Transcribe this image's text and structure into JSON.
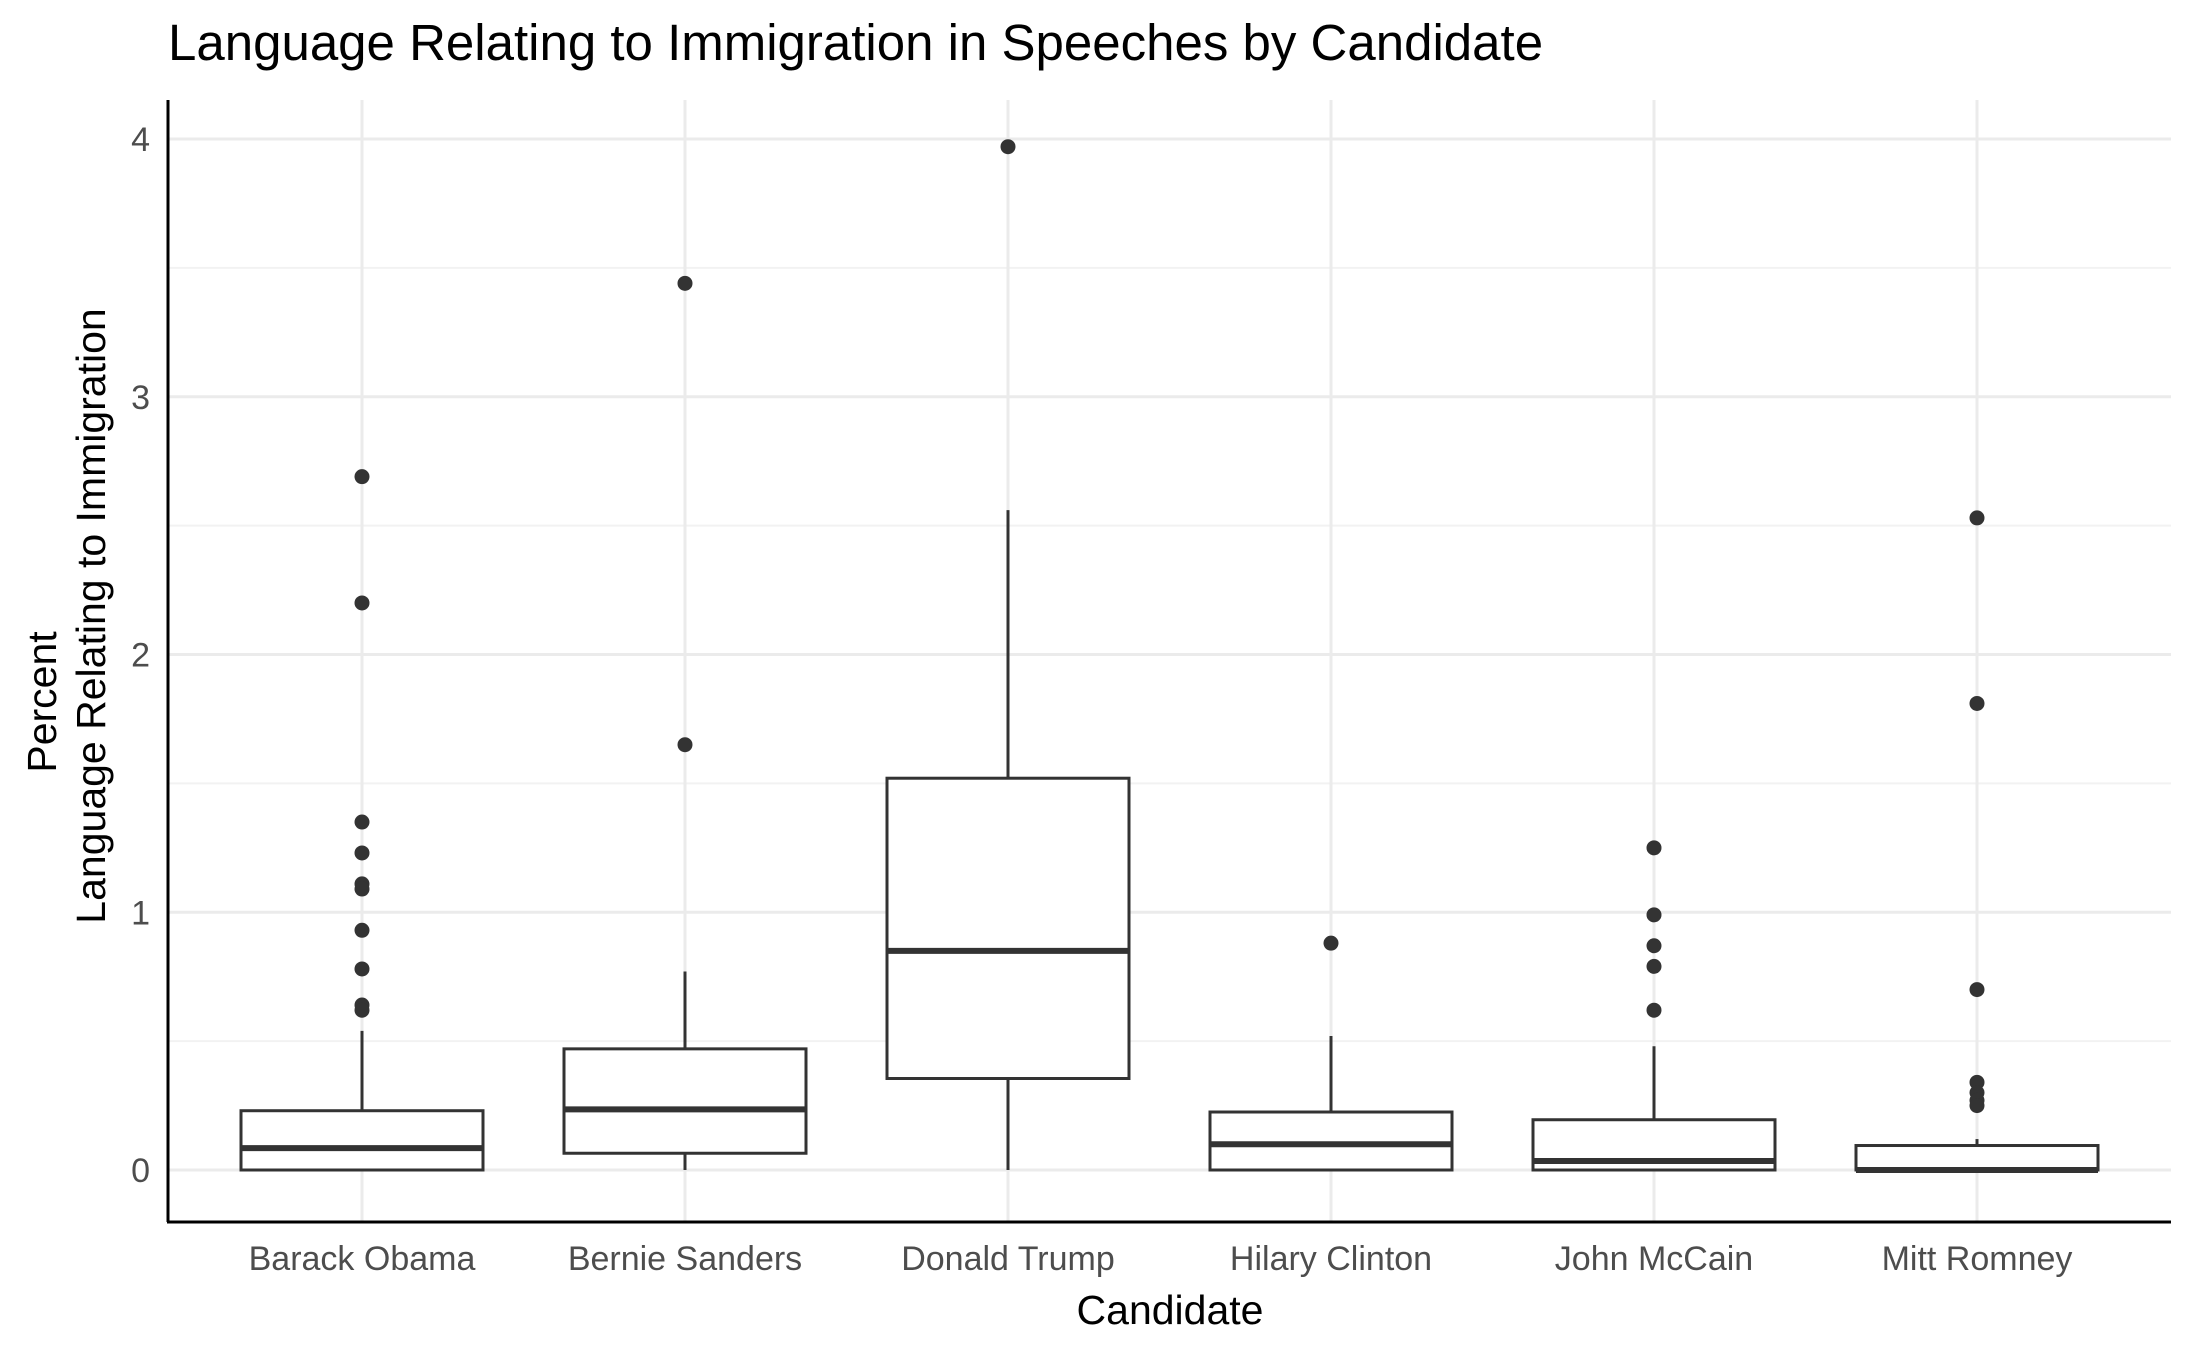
{
  "chart_data": {
    "type": "boxplot",
    "title": "Language Relating to Immigration in Speeches by Candidate",
    "xlabel": "Candidate",
    "ylabel": [
      "Percent",
      "Language Relating to Immigration"
    ],
    "ylim": [
      -0.19,
      4.17
    ],
    "yticks": [
      0,
      1,
      2,
      3,
      4
    ],
    "grid": true,
    "legend": "none",
    "colors": {
      "box_line": "#333333",
      "box_fill": "#ffffff",
      "grid": "#ebebeb",
      "axis": "#000000"
    },
    "categories": [
      "Barack Obama",
      "Bernie Sanders",
      "Donald Trump",
      "Hilary Clinton",
      "John McCain",
      "Mitt Romney"
    ],
    "boxes": [
      {
        "category": "Barack Obama",
        "whisker_low": 0.0,
        "q1": 0.0,
        "median": 0.085,
        "q3": 0.23,
        "whisker_high": 0.54,
        "outliers": [
          2.69,
          2.2,
          1.35,
          1.23,
          1.11,
          1.09,
          0.93,
          0.78,
          0.64,
          0.62
        ]
      },
      {
        "category": "Bernie Sanders",
        "whisker_low": 0.0,
        "q1": 0.065,
        "median": 0.235,
        "q3": 0.47,
        "whisker_high": 0.77,
        "outliers": [
          3.44,
          1.65
        ]
      },
      {
        "category": "Donald Trump",
        "whisker_low": 0.0,
        "q1": 0.355,
        "median": 0.85,
        "q3": 1.52,
        "whisker_high": 2.56,
        "outliers": [
          3.97
        ]
      },
      {
        "category": "Hilary Clinton",
        "whisker_low": 0.0,
        "q1": 0.0,
        "median": 0.1,
        "q3": 0.225,
        "whisker_high": 0.52,
        "outliers": [
          0.88
        ]
      },
      {
        "category": "John McCain",
        "whisker_low": 0.0,
        "q1": 0.0,
        "median": 0.035,
        "q3": 0.195,
        "whisker_high": 0.48,
        "outliers": [
          1.25,
          0.99,
          0.87,
          0.79,
          0.62
        ]
      },
      {
        "category": "Mitt Romney",
        "whisker_low": 0.0,
        "q1": 0.0,
        "median": 0.0,
        "q3": 0.095,
        "whisker_high": 0.12,
        "outliers": [
          2.53,
          1.81,
          0.7,
          0.34,
          0.3,
          0.27,
          0.25
        ]
      }
    ]
  }
}
